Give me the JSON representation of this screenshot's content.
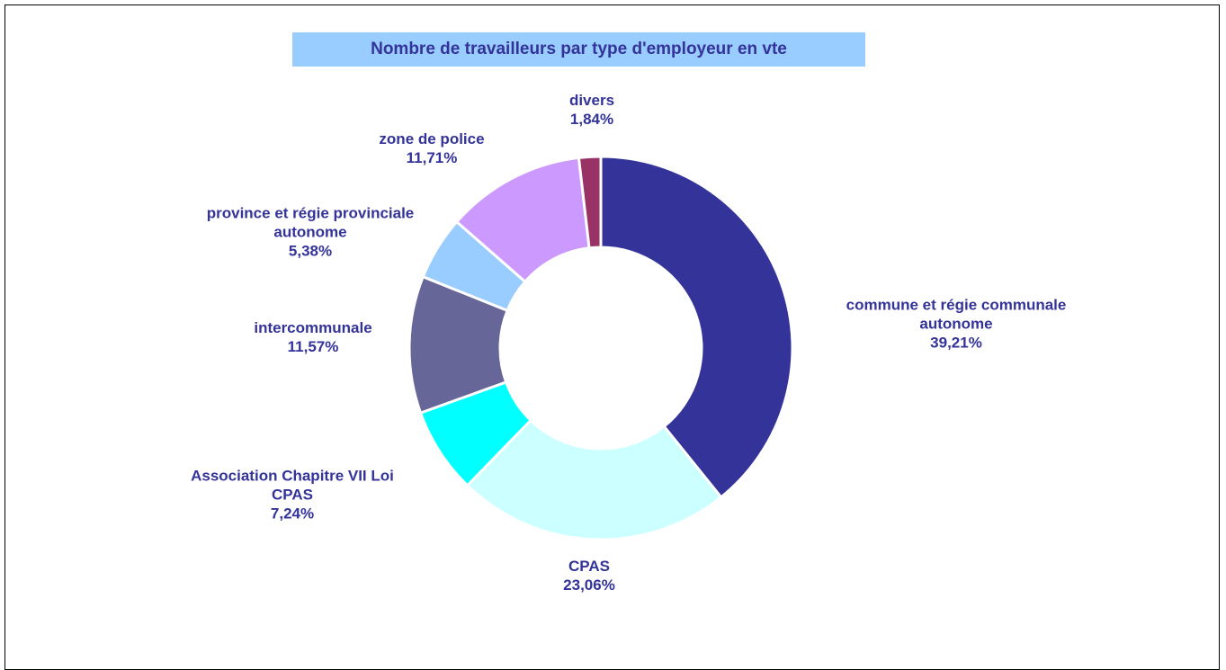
{
  "chart_data": {
    "type": "donut",
    "title": "Nombre de travailleurs par type d'employeur en vte",
    "categories": [
      "commune et régie communale autonome",
      "CPAS",
      "Association Chapitre VII Loi CPAS",
      "intercommunale",
      "province et régie provinciale autonome",
      "zone de police",
      "divers"
    ],
    "values": [
      39.21,
      23.06,
      7.24,
      11.57,
      5.38,
      11.71,
      1.84
    ],
    "value_labels": [
      "39,21%",
      "23,06%",
      "7,24%",
      "11,57%",
      "5,38%",
      "11,71%",
      "1,84%"
    ],
    "colors": [
      "#333399",
      "#ccffff",
      "#00ffff",
      "#666699",
      "#99ccff",
      "#cc99ff",
      "#993366"
    ]
  }
}
